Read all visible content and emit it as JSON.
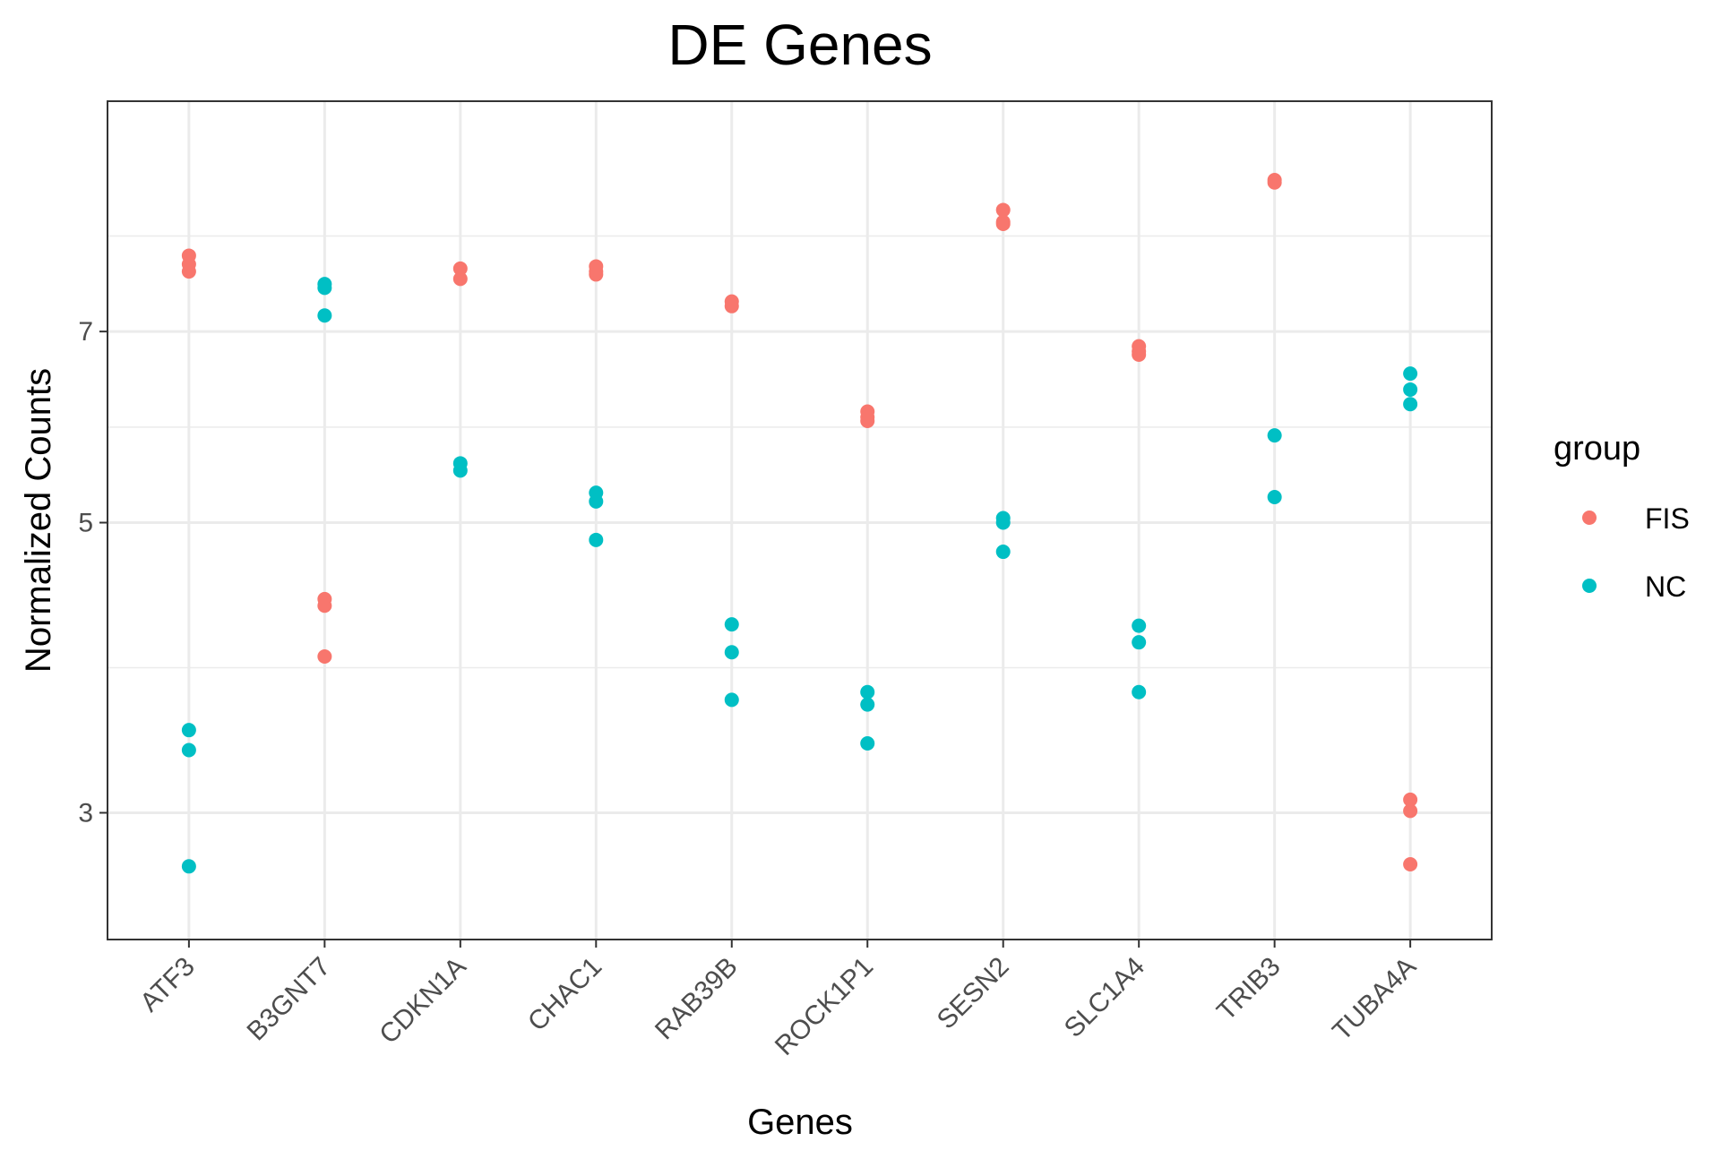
{
  "chart_data": {
    "type": "scatter",
    "title": "DE Genes",
    "xlabel": "Genes",
    "ylabel": "Normalized Counts",
    "scale": "log2",
    "categories": [
      "ATF3",
      "B3GNT7",
      "CDKN1A",
      "CHAC1",
      "RAB39B",
      "ROCK1P1",
      "SESN2",
      "SLC1A4",
      "TRIB3",
      "TUBA4A"
    ],
    "y_ticks": [
      3,
      5,
      7
    ],
    "ylim": [
      2.4,
      10.5
    ],
    "grid": true,
    "legend": {
      "title": "group",
      "position": "right"
    },
    "series": [
      {
        "name": "FIS",
        "color": "#F8766D",
        "points": {
          "ATF3": [
            8.0,
            7.88,
            7.78
          ],
          "B3GNT7": [
            4.37,
            4.32,
            3.95
          ],
          "CDKN1A": [
            7.82,
            7.68
          ],
          "CHAC1": [
            7.85,
            7.78,
            7.74
          ],
          "RAB39B": [
            7.38,
            7.32
          ],
          "ROCK1P1": [
            6.08,
            6.02,
            5.98
          ],
          "SESN2": [
            8.67,
            8.49,
            8.46
          ],
          "SLC1A4": [
            6.82,
            6.76,
            6.72
          ],
          "TRIB3": [
            9.14,
            9.1
          ],
          "TUBA4A": [
            3.07,
            3.01,
            2.74
          ]
        }
      },
      {
        "name": "NC",
        "color": "#00BFC4",
        "points": {
          "ATF3": [
            3.47,
            3.35,
            2.73
          ],
          "B3GNT7": [
            7.61,
            7.56,
            7.2
          ],
          "CDKN1A": [
            5.55,
            5.48
          ],
          "CHAC1": [
            5.27,
            5.19,
            4.85
          ],
          "RAB39B": [
            4.18,
            3.98,
            3.66
          ],
          "ROCK1P1": [
            3.71,
            3.63,
            3.39
          ],
          "SESN2": [
            5.04,
            5.0,
            4.75
          ],
          "SLC1A4": [
            4.17,
            4.05,
            3.71
          ],
          "TRIB3": [
            5.83,
            5.23
          ],
          "TUBA4A": [
            6.5,
            6.32,
            6.16
          ]
        }
      }
    ]
  }
}
